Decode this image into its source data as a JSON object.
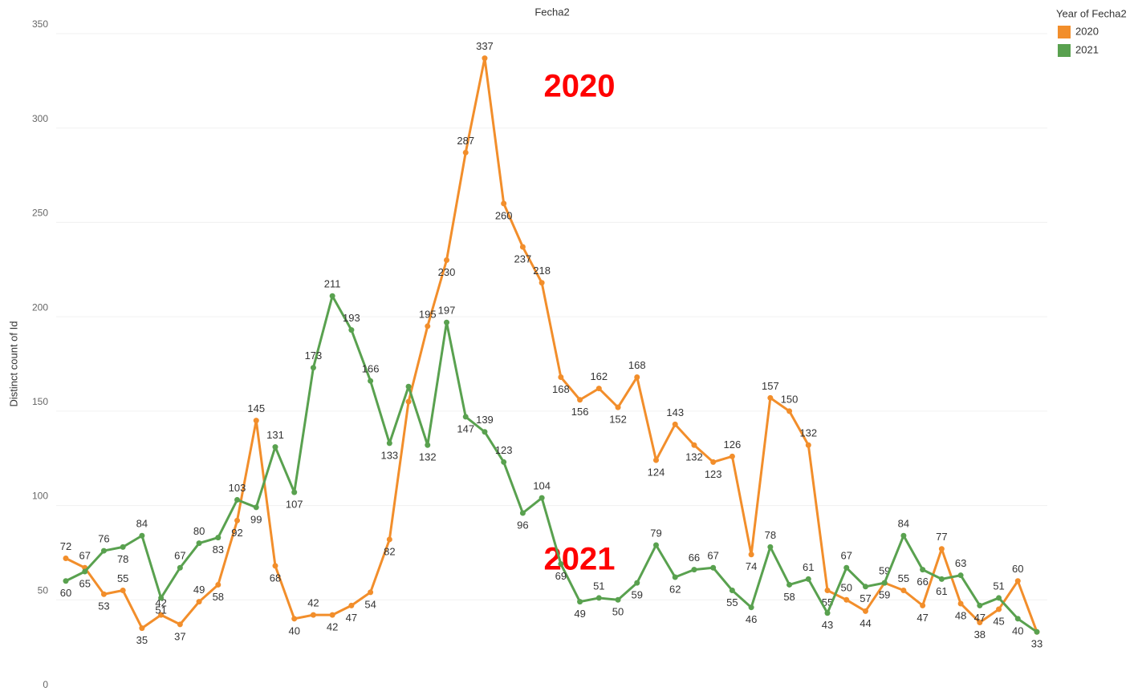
{
  "chart_data": {
    "type": "line",
    "title": "Fecha2",
    "y_label": "Distinct count of Id",
    "legend_title": "Year of Fecha2",
    "legend": "top-right",
    "grid": true,
    "annotations": [
      {
        "text": "2020",
        "color": "#ff0000"
      },
      {
        "text": "2021",
        "color": "#ff0000"
      }
    ],
    "ylim": [
      0,
      350
    ],
    "yticks": [
      0,
      50,
      100,
      150,
      200,
      250,
      300,
      350
    ],
    "xlim": [
      0,
      51
    ],
    "x": [
      0,
      1,
      2,
      3,
      4,
      5,
      6,
      7,
      8,
      9,
      10,
      11,
      12,
      13,
      14,
      15,
      16,
      17,
      18,
      19,
      20,
      21,
      22,
      23,
      24,
      25,
      26,
      27,
      28,
      29,
      30,
      31,
      32,
      33,
      34,
      35,
      36,
      37,
      38,
      39,
      40,
      41,
      42,
      43,
      44,
      45,
      46,
      47,
      48,
      49,
      50,
      51
    ],
    "series": [
      {
        "name": "2020",
        "color": "#f28e2b",
        "values": [
          72,
          67,
          53,
          55,
          35,
          42,
          37,
          49,
          58,
          92,
          145,
          68,
          40,
          42,
          42,
          47,
          54,
          82,
          155,
          195,
          230,
          287,
          337,
          260,
          237,
          218,
          168,
          156,
          162,
          152,
          168,
          124,
          143,
          132,
          123,
          126,
          74,
          157,
          150,
          132,
          55,
          50,
          44,
          59,
          55,
          47,
          77,
          48,
          38,
          45,
          60,
          33
        ],
        "value_labels": [
          "72",
          "67",
          "53",
          "55",
          "35",
          "42",
          "37",
          "49",
          "58",
          "92",
          "145",
          "68",
          "40",
          "42",
          "42",
          "47",
          "54",
          "82",
          null,
          "195",
          "230",
          "287",
          "337",
          "260",
          "237",
          "218",
          "168",
          "156",
          "162",
          "152",
          "168",
          "124",
          "143",
          "132",
          "123",
          "126",
          "74",
          "157",
          "150",
          "132",
          "55",
          "50",
          "44",
          "59",
          "55",
          "47",
          "77",
          "48",
          "38",
          "45",
          "60",
          "33"
        ]
      },
      {
        "name": "2021",
        "color": "#59a14f",
        "values": [
          60,
          65,
          76,
          78,
          84,
          51,
          67,
          80,
          83,
          103,
          99,
          131,
          107,
          173,
          211,
          193,
          166,
          133,
          163,
          132,
          197,
          147,
          139,
          123,
          96,
          104,
          69,
          49,
          51,
          50,
          59,
          79,
          62,
          66,
          67,
          55,
          46,
          78,
          58,
          61,
          43,
          67,
          57,
          59,
          84,
          66,
          61,
          63,
          47,
          51,
          40,
          33
        ],
        "value_labels": [
          "60",
          "65",
          "76",
          "78",
          "84",
          "51",
          "67",
          "80",
          "83",
          "103",
          "99",
          "131",
          "107",
          "173",
          "211",
          "193",
          "166",
          "133",
          null,
          "132",
          "197",
          "147",
          "139",
          "123",
          "96",
          "104",
          "69",
          "49",
          "51",
          "50",
          "59",
          "79",
          "62",
          "66",
          "67",
          "55",
          "46",
          "78",
          "58",
          "61",
          "43",
          "67",
          "57",
          "59",
          "84",
          "66",
          "61",
          "63",
          "47",
          "51",
          "40",
          null
        ]
      }
    ]
  }
}
